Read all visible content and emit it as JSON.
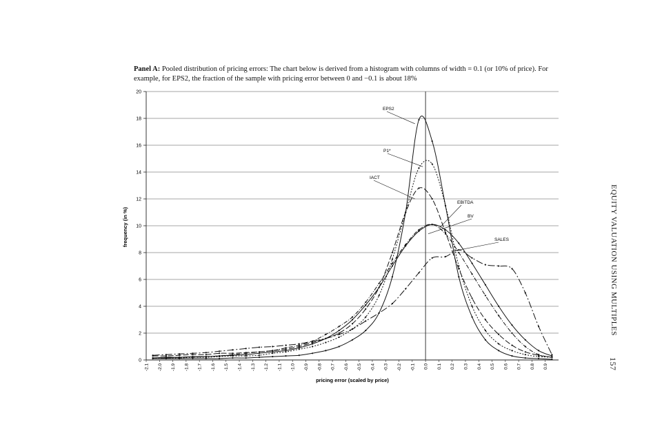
{
  "caption": {
    "panel_label": "Panel A:",
    "text": "Pooled distribution of pricing errors: The chart below is derived from a histogram with columns of width = 0.1 (or 10% of price). For example, for EPS2, the fraction of the sample with pricing error between 0 and −0.1 is about 18%"
  },
  "running_head": "EQUITY VALUATION USING MULTIPLES",
  "page_number": "157",
  "chart_data": {
    "type": "line",
    "xlabel": "pricing error (scaled by price)",
    "ylabel": "frequency (in %)",
    "ylim": [
      0,
      20
    ],
    "xlim": [
      -2.1,
      1.0
    ],
    "grid": true,
    "y_ticks": [
      "0",
      "2",
      "4",
      "6",
      "8",
      "10",
      "12",
      "14",
      "16",
      "18",
      "20"
    ],
    "x_ticks": [
      "-2.1",
      "-2.0",
      "-1.9",
      "-1.8",
      "-1.7",
      "-1.6",
      "-1.5",
      "-1.4",
      "-1.3",
      "-1.2",
      "-1.1",
      "-1.0",
      "-0.9",
      "-0.8",
      "-0.7",
      "-0.6",
      "-0.5",
      "-0.4",
      "-0.3",
      "-0.2",
      "-0.1",
      "0.0",
      "0.1",
      "0.2",
      "0.3",
      "0.4",
      "0.5",
      "0.6",
      "0.7",
      "0.8",
      "0.9"
    ],
    "x": [
      -2.05,
      -1.95,
      -1.85,
      -1.75,
      -1.65,
      -1.55,
      -1.45,
      -1.35,
      -1.25,
      -1.15,
      -1.05,
      -0.95,
      -0.85,
      -0.75,
      -0.65,
      -0.55,
      -0.45,
      -0.35,
      -0.25,
      -0.15,
      -0.05,
      0.05,
      0.15,
      0.25,
      0.35,
      0.45,
      0.55,
      0.65,
      0.75,
      0.85,
      0.95
    ],
    "series": [
      {
        "name": "EPS2",
        "dash": "",
        "values": [
          0.1,
          0.1,
          0.1,
          0.1,
          0.1,
          0.1,
          0.15,
          0.15,
          0.2,
          0.25,
          0.3,
          0.35,
          0.5,
          0.7,
          1.0,
          1.5,
          2.2,
          3.5,
          6.2,
          11.0,
          17.9,
          16.3,
          11.5,
          6.2,
          3.2,
          1.5,
          0.7,
          0.3,
          0.15,
          0.1,
          0.05
        ]
      },
      {
        "name": "P1*",
        "dash": "2,2",
        "values": [
          0.15,
          0.15,
          0.15,
          0.2,
          0.2,
          0.25,
          0.3,
          0.3,
          0.35,
          0.5,
          0.6,
          0.8,
          1.0,
          1.3,
          1.7,
          2.3,
          3.2,
          4.8,
          7.5,
          11.0,
          14.3,
          14.6,
          11.5,
          7.0,
          4.0,
          2.2,
          1.2,
          0.7,
          0.4,
          0.25,
          0.2
        ]
      },
      {
        "name": "IACT",
        "dash": "8,3",
        "values": [
          0.3,
          0.3,
          0.35,
          0.4,
          0.4,
          0.5,
          0.5,
          0.55,
          0.6,
          0.7,
          0.8,
          1.0,
          1.3,
          1.6,
          2.0,
          2.7,
          3.8,
          5.4,
          8.0,
          11.0,
          12.8,
          12.0,
          9.5,
          6.8,
          4.6,
          3.0,
          1.9,
          1.1,
          0.6,
          0.35,
          0.2
        ]
      },
      {
        "name": "EBITDA",
        "dash": "6,2,1,2",
        "values": [
          0.1,
          0.15,
          0.2,
          0.2,
          0.25,
          0.3,
          0.4,
          0.5,
          0.6,
          0.7,
          0.9,
          1.1,
          1.4,
          1.9,
          2.5,
          3.2,
          4.3,
          5.7,
          7.2,
          8.6,
          9.7,
          10.1,
          9.4,
          8.0,
          6.4,
          4.8,
          3.3,
          2.0,
          1.0,
          0.4,
          0.2
        ]
      },
      {
        "name": "BV",
        "dash": "",
        "values": [
          0.15,
          0.2,
          0.2,
          0.25,
          0.25,
          0.3,
          0.35,
          0.4,
          0.5,
          0.6,
          0.7,
          0.9,
          1.2,
          1.6,
          2.2,
          3.0,
          4.1,
          5.4,
          7.0,
          8.5,
          9.6,
          10.1,
          9.7,
          8.7,
          7.2,
          5.6,
          4.0,
          2.6,
          1.5,
          0.7,
          0.3
        ]
      },
      {
        "name": "SALES",
        "dash": "10,3,2,3",
        "values": [
          0.35,
          0.4,
          0.45,
          0.5,
          0.55,
          0.65,
          0.75,
          0.85,
          0.95,
          1.0,
          1.1,
          1.2,
          1.4,
          1.6,
          1.9,
          2.3,
          2.9,
          3.5,
          4.2,
          5.3,
          6.5,
          7.6,
          7.7,
          8.2,
          7.6,
          7.1,
          7.0,
          6.8,
          5.0,
          2.5,
          0.4
        ]
      }
    ],
    "annotations": [
      {
        "text": "EPS2",
        "series": "EPS2"
      },
      {
        "text": "P1*",
        "series": "P1*"
      },
      {
        "text": "IACT",
        "series": "IACT"
      },
      {
        "text": "EBITDA",
        "series": "EBITDA"
      },
      {
        "text": "BV",
        "series": "BV"
      },
      {
        "text": "SALES",
        "series": "SALES"
      }
    ]
  }
}
